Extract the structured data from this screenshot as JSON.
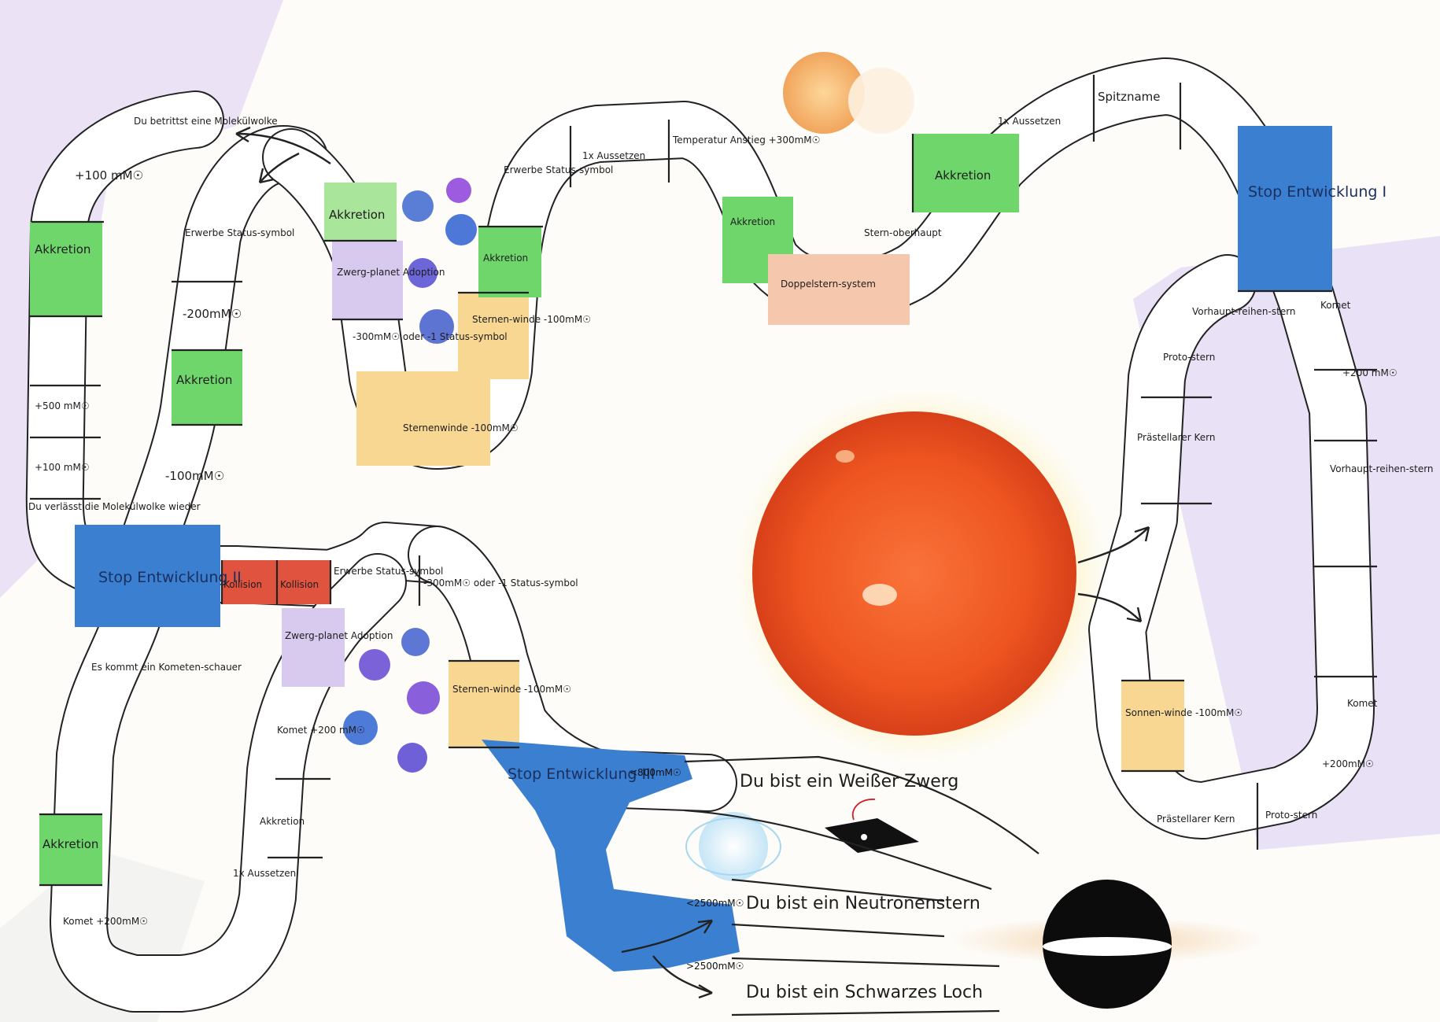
{
  "colors": {
    "accretion": "#6fd66b",
    "stop": "#3b7fd1",
    "collision": "#e0533f",
    "windZone": "#f7d792",
    "dwarf": "#d8c9ee",
    "doubleStar": "#f5c8ad",
    "statusSymbol": "#f1efc9",
    "sun": "#f05a1e"
  },
  "fields": {
    "f1": "Du betrittst eine Molekülwolke",
    "f2": "+100 mM☉",
    "f3": "Akkretion",
    "f4": "",
    "f5": "+500 mM☉",
    "f6": "+100 mM☉",
    "f7": "Du verlässt die Molekülwolke wieder",
    "f8": "Stop Entwicklung II",
    "f9": "Es kommt ein Kometen-schauer",
    "f10": "Akkretion",
    "f11": "Komet +200mM☉",
    "f12": "Erwerbe Status-symbol",
    "f13": "-200mM☉",
    "f14": "Akkretion",
    "f15": "-100mM☉",
    "f16": "Akkretion",
    "f17": "Zwerg-planet Adoption",
    "f18": "-300mM☉ oder -1 Status-symbol",
    "f19": "Sternenwinde -100mM☉",
    "f20": "Sternen-winde -100mM☉",
    "f21": "Akkretion",
    "f22": "Erwerbe Status-symbol",
    "f23": "1x Aussetzen",
    "f24": "Temperatur Anstieg +300mM☉",
    "f25": "Akkretion",
    "f26": "Doppelstern-system",
    "f27": "Stern-oberhaupt",
    "f28": "Akkretion",
    "f29": "1x Aussetzen",
    "f30": "Spitzname",
    "f31": "Stop Entwicklung I",
    "f32": "Vorhaupt-reihen-stern",
    "f33": "Proto-stern",
    "f34": "Prästellarer Kern",
    "f35": "Komet",
    "f36": "+200 mM☉",
    "f37": "Vorhaupt-reihen-stern",
    "f38": "Komet",
    "f39": "+200mM☉",
    "f40": "Proto-stern",
    "f41": "Prästellarer Kern",
    "f42": "Sonnen-winde -100mM☉",
    "f43": "Kollision",
    "f44": "Kollision",
    "f45": "Erwerbe Status-symbol",
    "f46": "-300mM☉ oder -1 Status-symbol",
    "f47": "Zwerg-planet Adoption",
    "f48": "Sternen-winde -100mM☉",
    "f49": "Komet +200 mM☉",
    "f50": "Akkretion",
    "f51": "1x Aussetzen",
    "f52": "Stop Entwicklung III"
  },
  "endings": {
    "whiteDwarf": "Du bist ein Weißer Zwerg",
    "neutronStar": "Du bist ein Neutronenstern",
    "blackHole": "Du bist ein Schwarzes Loch"
  },
  "thresholds": {
    "t1": "<800mM☉",
    "t2": "<2500mM☉",
    "t3": ">2500mM☉"
  },
  "icons": [
    "sun-icon",
    "planet-icon",
    "neutron-star-icon",
    "black-hole-icon",
    "arrow-icon"
  ]
}
